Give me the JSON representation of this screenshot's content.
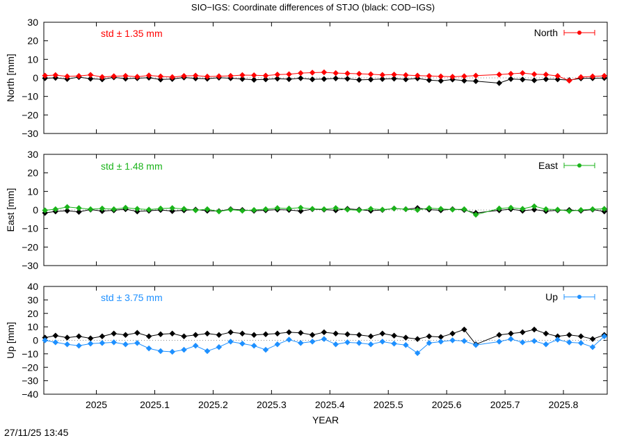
{
  "title": "SIO−IGS: Coordinate differences of STJO (black: COD−IGS)",
  "timestamp": "27/11/25 13:45",
  "xlabel": "YEAR",
  "x_ticks": [
    2025,
    2025.1,
    2025.2,
    2025.3,
    2025.4,
    2025.5,
    2025.6,
    2025.7,
    2025.8
  ],
  "x_tick_labels": [
    "2025",
    "2025.1",
    "2025.2",
    "2025.3",
    "2025.4",
    "2025.5",
    "2025.6",
    "2025.7",
    "2025.8"
  ],
  "xlim": [
    2024.91,
    2025.875
  ],
  "panels": [
    {
      "id": "north",
      "ylabel": "North [mm]",
      "legend": "North",
      "std_text": "std ± 1.35 mm",
      "color": "#ff0000",
      "ylim": [
        -30,
        30
      ],
      "y_ticks": [
        30,
        20,
        10,
        0,
        -10,
        -20,
        -30
      ],
      "y_tick_labels": [
        "30",
        "20",
        "10",
        "0",
        "−10",
        "−20",
        "−30"
      ]
    },
    {
      "id": "east",
      "ylabel": "East [mm]",
      "legend": "East",
      "std_text": "std ± 1.48 mm",
      "color": "#1ab31a",
      "ylim": [
        -30,
        30
      ],
      "y_ticks": [
        30,
        20,
        10,
        0,
        -10,
        -20,
        -30
      ],
      "y_tick_labels": [
        "30",
        "20",
        "10",
        "0",
        "−10",
        "−20",
        "−30"
      ]
    },
    {
      "id": "up",
      "ylabel": "Up [mm]",
      "legend": "Up",
      "std_text": "std ± 3.75 mm",
      "color": "#1e90ff",
      "ylim": [
        -40,
        40
      ],
      "y_ticks": [
        40,
        30,
        20,
        10,
        0,
        -10,
        -20,
        -30,
        -40
      ],
      "y_tick_labels": [
        "40",
        "30",
        "20",
        "10",
        "0",
        "−10",
        "−20",
        "−30",
        "−40"
      ]
    }
  ],
  "chart_data": [
    {
      "type": "scatter",
      "title": "SIO−IGS: Coordinate differences of STJO (black: COD−IGS)",
      "xlabel": "",
      "ylabel": "North [mm]",
      "xlim": [
        2024.91,
        2025.875
      ],
      "ylim": [
        -30,
        30
      ],
      "series": [
        {
          "name": "North",
          "color": "#ff0000",
          "x": [
            2024.912,
            2024.93,
            2024.95,
            2024.97,
            2024.99,
            2025.01,
            2025.03,
            2025.05,
            2025.07,
            2025.09,
            2025.11,
            2025.13,
            2025.15,
            2025.17,
            2025.19,
            2025.21,
            2025.23,
            2025.25,
            2025.27,
            2025.29,
            2025.31,
            2025.33,
            2025.35,
            2025.37,
            2025.39,
            2025.41,
            2025.43,
            2025.45,
            2025.47,
            2025.49,
            2025.51,
            2025.53,
            2025.55,
            2025.57,
            2025.59,
            2025.61,
            2025.63,
            2025.65,
            2025.69,
            2025.71,
            2025.73,
            2025.75,
            2025.77,
            2025.79,
            2025.81,
            2025.83,
            2025.85,
            2025.87
          ],
          "y": [
            1.2,
            1.5,
            0.8,
            1.0,
            1.6,
            0.5,
            0.9,
            1.1,
            0.6,
            1.3,
            0.8,
            0.4,
            1.0,
            1.2,
            0.7,
            0.9,
            1.1,
            1.5,
            1.4,
            1.2,
            1.8,
            2.0,
            2.6,
            2.8,
            3.0,
            2.6,
            2.4,
            2.2,
            2.0,
            1.6,
            1.8,
            1.5,
            1.2,
            1.0,
            0.8,
            0.6,
            0.9,
            1.2,
            1.8,
            2.2,
            2.6,
            2.0,
            1.8,
            1.0,
            -1.5,
            0.4,
            0.8,
            1.1
          ]
        },
        {
          "name": "",
          "color": "#000000",
          "x": [
            2024.912,
            2024.93,
            2024.95,
            2024.97,
            2024.99,
            2025.01,
            2025.03,
            2025.05,
            2025.07,
            2025.09,
            2025.11,
            2025.13,
            2025.15,
            2025.17,
            2025.19,
            2025.21,
            2025.23,
            2025.25,
            2025.27,
            2025.29,
            2025.31,
            2025.33,
            2025.35,
            2025.37,
            2025.39,
            2025.41,
            2025.43,
            2025.45,
            2025.47,
            2025.49,
            2025.51,
            2025.53,
            2025.55,
            2025.57,
            2025.59,
            2025.61,
            2025.63,
            2025.65,
            2025.69,
            2025.71,
            2025.73,
            2025.75,
            2025.77,
            2025.79,
            2025.81,
            2025.83,
            2025.85,
            2025.87
          ],
          "y": [
            -0.2,
            0.0,
            -0.6,
            0.4,
            -0.5,
            -0.8,
            0.3,
            -0.4,
            -0.2,
            0.1,
            -0.9,
            -0.6,
            0.2,
            -0.3,
            -0.5,
            0.1,
            -0.2,
            -0.6,
            -1.0,
            -0.8,
            -0.4,
            -0.7,
            -0.2,
            -0.8,
            -0.6,
            -0.3,
            -0.5,
            -1.1,
            -0.9,
            -0.6,
            -0.4,
            -0.8,
            -0.3,
            -1.2,
            -1.6,
            -0.9,
            -1.5,
            -1.8,
            -2.8,
            -0.6,
            -0.9,
            -1.3,
            -0.7,
            -0.8,
            -1.2,
            -0.3,
            -0.2,
            -0.1
          ]
        }
      ]
    },
    {
      "type": "scatter",
      "xlabel": "",
      "ylabel": "East [mm]",
      "xlim": [
        2024.91,
        2025.875
      ],
      "ylim": [
        -30,
        30
      ],
      "series": [
        {
          "name": "East",
          "color": "#1ab31a",
          "x": [
            2024.912,
            2024.93,
            2024.95,
            2024.97,
            2024.99,
            2025.01,
            2025.03,
            2025.05,
            2025.07,
            2025.09,
            2025.11,
            2025.13,
            2025.15,
            2025.17,
            2025.19,
            2025.21,
            2025.23,
            2025.25,
            2025.27,
            2025.29,
            2025.31,
            2025.33,
            2025.35,
            2025.37,
            2025.39,
            2025.41,
            2025.43,
            2025.45,
            2025.47,
            2025.49,
            2025.51,
            2025.53,
            2025.55,
            2025.57,
            2025.59,
            2025.61,
            2025.63,
            2025.65,
            2025.69,
            2025.71,
            2025.73,
            2025.75,
            2025.77,
            2025.79,
            2025.81,
            2025.83,
            2025.85,
            2025.87
          ],
          "y": [
            -0.2,
            0.4,
            1.6,
            1.0,
            0.4,
            0.8,
            0.4,
            1.2,
            0.6,
            0.2,
            0.8,
            1.0,
            0.6,
            -0.2,
            0.4,
            -0.8,
            0.2,
            -0.4,
            0.0,
            0.4,
            1.0,
            0.8,
            1.2,
            0.6,
            0.4,
            1.0,
            0.2,
            -0.2,
            0.6,
            0.2,
            0.8,
            0.4,
            0.0,
            1.0,
            0.6,
            0.2,
            0.4,
            -2.6,
            0.8,
            1.2,
            0.6,
            2.0,
            0.4,
            0.2,
            -0.6,
            0.0,
            0.4,
            0.6
          ]
        },
        {
          "name": "",
          "color": "#000000",
          "x": [
            2024.912,
            2024.93,
            2024.95,
            2024.97,
            2024.99,
            2025.01,
            2025.03,
            2025.05,
            2025.07,
            2025.09,
            2025.11,
            2025.13,
            2025.15,
            2025.17,
            2025.19,
            2025.21,
            2025.23,
            2025.25,
            2025.27,
            2025.29,
            2025.31,
            2025.33,
            2025.35,
            2025.37,
            2025.39,
            2025.41,
            2025.43,
            2025.45,
            2025.47,
            2025.49,
            2025.51,
            2025.53,
            2025.55,
            2025.57,
            2025.59,
            2025.61,
            2025.63,
            2025.65,
            2025.69,
            2025.71,
            2025.73,
            2025.75,
            2025.77,
            2025.79,
            2025.81,
            2025.83,
            2025.85,
            2025.87
          ],
          "y": [
            -1.6,
            -0.8,
            -0.4,
            -1.0,
            0.2,
            -0.6,
            -0.2,
            0.4,
            -0.8,
            -0.4,
            0.0,
            -0.6,
            -0.2,
            0.2,
            -0.4,
            -0.6,
            0.4,
            0.0,
            -0.4,
            -0.2,
            0.2,
            0.0,
            -0.6,
            0.4,
            0.2,
            -0.2,
            0.6,
            0.2,
            -0.4,
            0.0,
            0.8,
            0.4,
            1.0,
            0.2,
            -0.2,
            0.4,
            0.0,
            -1.6,
            -0.2,
            0.4,
            -0.4,
            0.2,
            -0.6,
            -0.2,
            0.0,
            -0.4,
            0.2,
            -0.8
          ]
        }
      ]
    },
    {
      "type": "scatter",
      "xlabel": "YEAR",
      "ylabel": "Up [mm]",
      "xlim": [
        2024.91,
        2025.875
      ],
      "ylim": [
        -40,
        40
      ],
      "series": [
        {
          "name": "Up",
          "color": "#1e90ff",
          "x": [
            2024.912,
            2024.93,
            2024.95,
            2024.97,
            2024.99,
            2025.01,
            2025.03,
            2025.05,
            2025.07,
            2025.09,
            2025.11,
            2025.13,
            2025.15,
            2025.17,
            2025.19,
            2025.21,
            2025.23,
            2025.25,
            2025.27,
            2025.29,
            2025.31,
            2025.33,
            2025.35,
            2025.37,
            2025.39,
            2025.41,
            2025.43,
            2025.45,
            2025.47,
            2025.49,
            2025.51,
            2025.53,
            2025.55,
            2025.57,
            2025.59,
            2025.61,
            2025.63,
            2025.65,
            2025.69,
            2025.71,
            2025.73,
            2025.75,
            2025.77,
            2025.79,
            2025.81,
            2025.83,
            2025.85,
            2025.87
          ],
          "y": [
            0.0,
            -1.5,
            -3.0,
            -4.0,
            -2.5,
            -2.0,
            -1.5,
            -3.0,
            -2.0,
            -6.0,
            -8.0,
            -8.5,
            -7.0,
            -4.0,
            -8.0,
            -5.0,
            -1.0,
            -2.5,
            -4.0,
            -7.0,
            -3.0,
            0.5,
            -2.0,
            -1.0,
            1.0,
            -3.0,
            -1.5,
            -2.0,
            -3.0,
            -1.0,
            -2.5,
            -3.5,
            -9.5,
            -2.0,
            -1.0,
            0.0,
            -0.5,
            -3.5,
            -1.0,
            1.0,
            -1.5,
            -0.5,
            -3.0,
            0.5,
            -1.5,
            -2.0,
            -5.0,
            3.0
          ]
        },
        {
          "name": "",
          "color": "#000000",
          "x": [
            2024.912,
            2024.93,
            2024.95,
            2024.97,
            2024.99,
            2025.01,
            2025.03,
            2025.05,
            2025.07,
            2025.09,
            2025.11,
            2025.13,
            2025.15,
            2025.17,
            2025.19,
            2025.21,
            2025.23,
            2025.25,
            2025.27,
            2025.29,
            2025.31,
            2025.33,
            2025.35,
            2025.37,
            2025.39,
            2025.41,
            2025.43,
            2025.45,
            2025.47,
            2025.49,
            2025.51,
            2025.53,
            2025.55,
            2025.57,
            2025.59,
            2025.61,
            2025.63,
            2025.65,
            2025.69,
            2025.71,
            2025.73,
            2025.75,
            2025.77,
            2025.79,
            2025.81,
            2025.83,
            2025.85,
            2025.87
          ],
          "y": [
            2.0,
            3.5,
            2.0,
            3.0,
            1.5,
            3.0,
            5.0,
            4.0,
            5.5,
            3.0,
            4.5,
            5.0,
            3.0,
            4.0,
            5.0,
            4.0,
            6.0,
            5.0,
            4.0,
            4.5,
            5.0,
            6.0,
            5.5,
            4.0,
            6.0,
            5.0,
            4.5,
            4.0,
            3.0,
            5.0,
            3.5,
            2.0,
            1.0,
            3.0,
            2.5,
            5.0,
            8.0,
            -3.0,
            4.0,
            5.0,
            6.0,
            8.0,
            5.0,
            3.0,
            4.0,
            3.0,
            1.0,
            4.0
          ]
        }
      ]
    }
  ]
}
